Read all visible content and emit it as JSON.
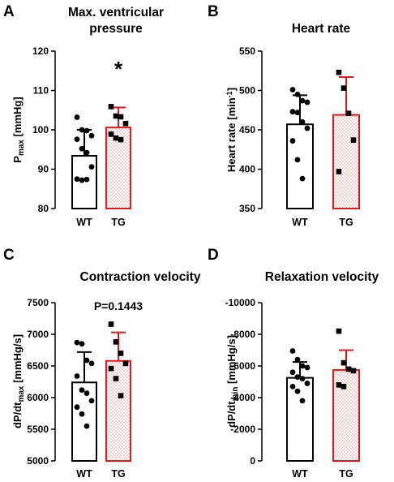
{
  "chart_data": [
    {
      "type": "bar",
      "panel": "A",
      "title": [
        "Max. ventricular",
        "pressure"
      ],
      "ylabel": {
        "main": "P",
        "sub": "max",
        "suffix": " [mmHg]"
      },
      "ylim": [
        80,
        120
      ],
      "yticks": [
        80,
        90,
        100,
        110,
        120
      ],
      "categories": [
        "WT",
        "TG"
      ],
      "series": [
        {
          "values": [
            93.4,
            100.6
          ],
          "sd": [
            6.6,
            5.1
          ],
          "points": [
            [
              103.2,
              100.0,
              99.8,
              98.5,
              97.6,
              95.2,
              94.2,
              90.6,
              87.5,
              87.2,
              87.4
            ],
            [
              105.9,
              103.5,
              103.3,
              101.6,
              98.9,
              97.9,
              97.5
            ]
          ]
        }
      ],
      "annotation": "*",
      "colors": {
        "WT": "#000000",
        "TG": "#e31a1c"
      }
    },
    {
      "type": "bar",
      "panel": "B",
      "title": [
        "Heart rate"
      ],
      "ylabel": {
        "main": "Heart rate [min",
        "sup": "-1",
        "suffix": "]"
      },
      "ylim": [
        350,
        550
      ],
      "yticks": [
        350,
        400,
        450,
        500,
        550
      ],
      "categories": [
        "WT",
        "TG"
      ],
      "series": [
        {
          "values": [
            457,
            469
          ],
          "sd": [
            37,
            48
          ],
          "points": [
            [
              501,
              495,
              487,
              485,
              473,
              472,
              460,
              452,
              436,
              412,
              388
            ],
            [
              523,
              503,
              471,
              437,
              397
            ]
          ]
        }
      ],
      "annotation": "",
      "colors": {
        "WT": "#000000",
        "TG": "#e31a1c"
      }
    },
    {
      "type": "bar",
      "panel": "C",
      "title": [
        "Contraction velocity"
      ],
      "ylabel": {
        "main": "dP/dt",
        "sub": "max",
        "suffix": " [mmHg/s]"
      },
      "ylim": [
        5000,
        7500
      ],
      "yticks": [
        5000,
        5500,
        6000,
        6500,
        7000,
        7500
      ],
      "categories": [
        "WT",
        "TG"
      ],
      "series": [
        {
          "values": [
            6240,
            6580
          ],
          "sd": [
            480,
            450
          ],
          "points": [
            [
              6870,
              6850,
              6590,
              6540,
              6340,
              6120,
              6070,
              5950,
              5850,
              5740,
              5550
            ],
            [
              7160,
              6880,
              6700,
              6540,
              6460,
              6300,
              6030
            ]
          ]
        }
      ],
      "annotation": "P=0.1443",
      "colors": {
        "WT": "#000000",
        "TG": "#e31a1c"
      }
    },
    {
      "type": "bar",
      "panel": "D",
      "title": [
        "Relaxation velocity"
      ],
      "ylabel": {
        "main": "dP/dt",
        "sub": "min",
        "suffix": " [mmHg/s]"
      },
      "ylim": [
        0,
        -10000
      ],
      "yticks": [
        0,
        -2000,
        -4000,
        -6000,
        -8000,
        -10000
      ],
      "categories": [
        "WT",
        "TG"
      ],
      "series": [
        {
          "values": [
            -5250,
            -5750
          ],
          "sd": [
            1000,
            1250
          ],
          "points": [
            [
              -6950,
              -6400,
              -6000,
              -5900,
              -5600,
              -5300,
              -5200,
              -4900,
              -4700,
              -4400,
              -3800
            ],
            [
              -8200,
              -6200,
              -5800,
              -5700,
              -4800,
              -4700
            ]
          ]
        }
      ],
      "annotation": "",
      "colors": {
        "WT": "#000000",
        "TG": "#e31a1c"
      }
    }
  ]
}
